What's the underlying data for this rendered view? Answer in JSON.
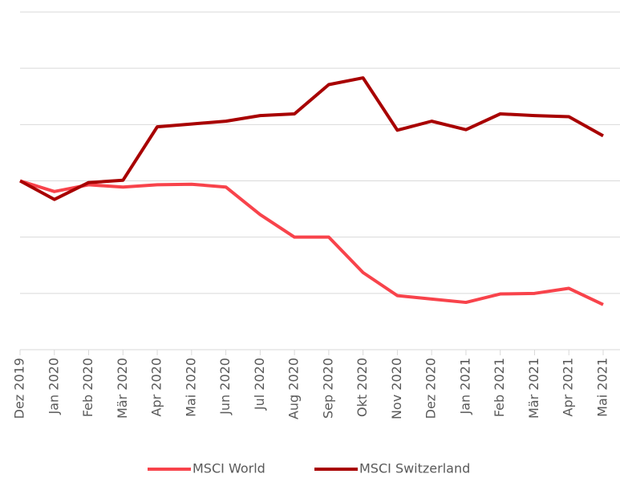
{
  "chart_data": {
    "type": "line",
    "categories": [
      "Dez 2019",
      "Jan 2020",
      "Feb 2020",
      "Mär 2020",
      "Apr 2020",
      "Mai 2020",
      "Jun 2020",
      "Jul 2020",
      "Aug 2020",
      "Sep 2020",
      "Okt 2020",
      "Nov 2020",
      "Dez 2020",
      "Jan 2021",
      "Feb 2021",
      "Mär 2021",
      "Apr 2021",
      "Mai 2021"
    ],
    "series": [
      {
        "name": "MSCI World",
        "color": "#f8434b",
        "values": [
          100,
          98.1,
          99.3,
          98.9,
          99.3,
          99.4,
          98.9,
          94.0,
          90.0,
          90.0,
          83.7,
          79.6,
          79.0,
          78.4,
          79.9,
          80.0,
          80.9,
          78.0
        ]
      },
      {
        "name": "MSCI Switzerland",
        "color": "#a80000",
        "values": [
          100,
          96.7,
          99.7,
          100.1,
          109.6,
          110.1,
          110.6,
          111.6,
          111.9,
          117.1,
          118.3,
          109.0,
          110.6,
          109.1,
          111.9,
          111.6,
          111.4,
          108.0
        ]
      }
    ],
    "ylim": [
      70,
      130
    ],
    "yticks": [
      70,
      80,
      90,
      100,
      110,
      120,
      130
    ],
    "grid": true,
    "legend": "bottom"
  }
}
